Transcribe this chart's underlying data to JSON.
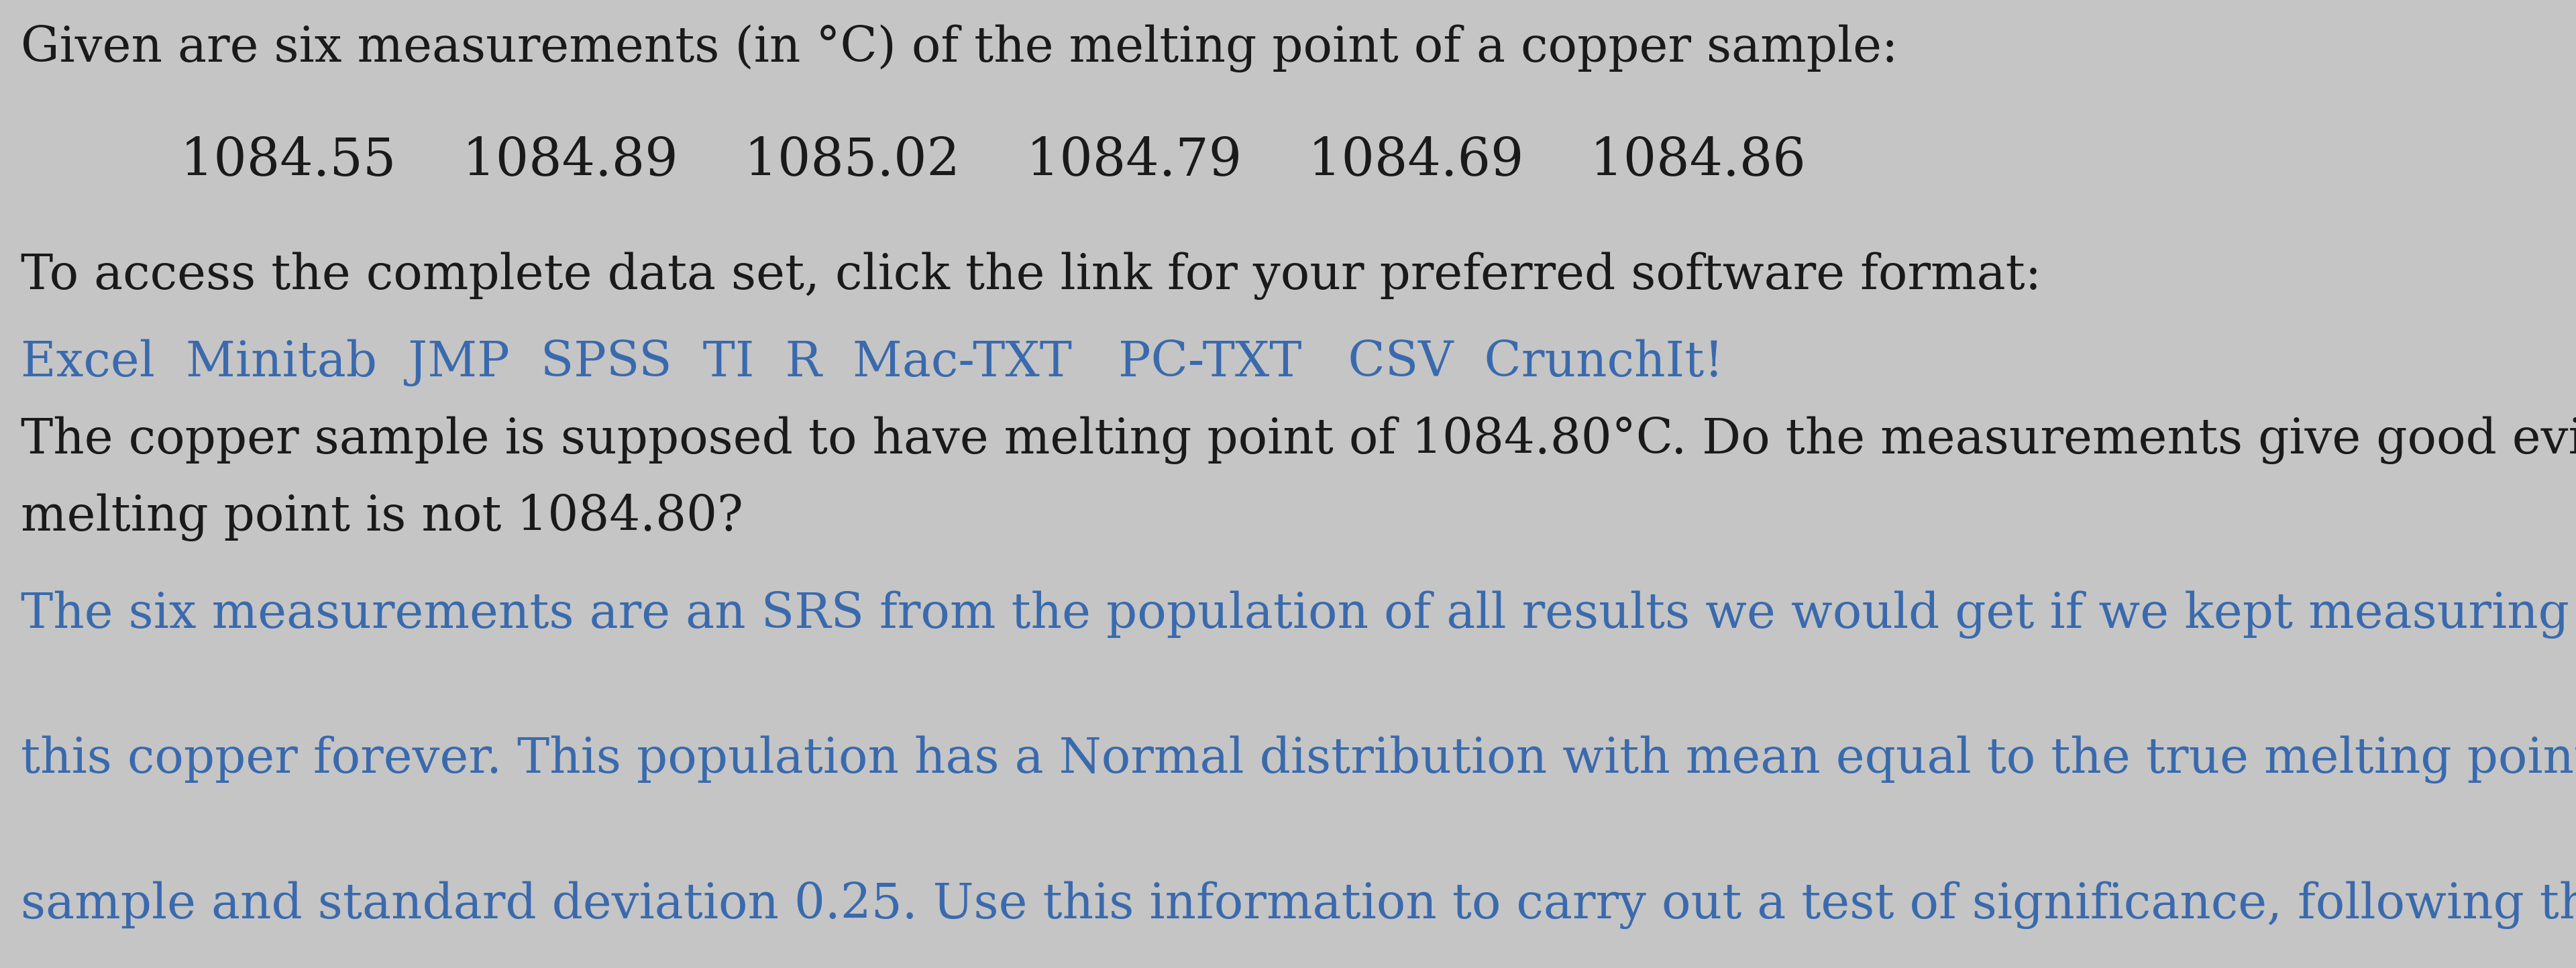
{
  "bg_color": "#c5c5c5",
  "text_color_black": "#1a1a1a",
  "text_color_blue": "#3a6aad",
  "line1": "Given are six measurements (in °C) of the melting point of a copper sample:",
  "line2_values": "1084.55    1084.89    1085.02    1084.79    1084.69    1084.86",
  "line3": "To access the complete data set, click the link for your preferred software format:",
  "line4_links": "Excel  Minitab  JMP  SPSS  TI  R  Mac-TXT   PC-TXT   CSV  CrunchIt!",
  "line5a": "The copper sample is supposed to have melting point of 1084.80°C. Do the measurements give good evidence that the",
  "line5b": "melting point is not 1084.80?",
  "line6a": "The six measurements are an SRS from the population of all results we would get if we kept measuring the melting point of",
  "line6b": "this copper forever. This population has a Normal distribution with mean equal to the true melting point of the copper",
  "line6c": "sample and standard deviation 0.25. Use this information to carry out a test of significance, following the four-step process.",
  "font_size_main": 52,
  "font_size_values": 56
}
